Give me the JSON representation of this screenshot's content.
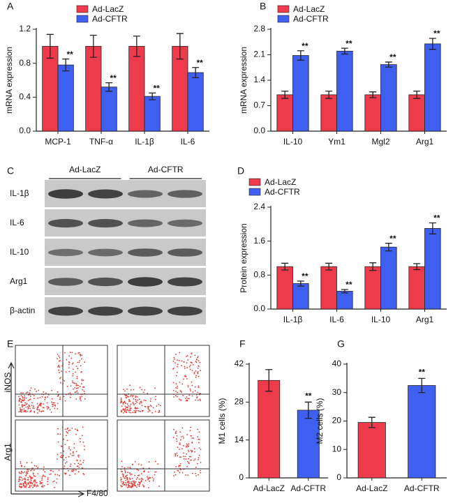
{
  "chart_data": [
    {
      "type": "bar",
      "panel_label": "A",
      "y_label": "mRNA expression",
      "categories": [
        "MCP-1",
        "TNF-α",
        "IL-1β",
        "IL-6"
      ],
      "series": [
        {
          "name": "Ad-LacZ",
          "color": "#ee3b4b",
          "values": [
            1.0,
            1.0,
            1.0,
            1.0
          ],
          "errors": [
            0.14,
            0.13,
            0.12,
            0.15
          ]
        },
        {
          "name": "Ad-CFTR",
          "color": "#3f5ff0",
          "values": [
            0.78,
            0.52,
            0.41,
            0.69
          ],
          "errors": [
            0.07,
            0.05,
            0.04,
            0.06
          ],
          "significance": [
            "**",
            "**",
            "**",
            "**"
          ]
        }
      ],
      "ylim": [
        0,
        1.2
      ],
      "yticks": [
        {
          "value": 0,
          "label": "0.0"
        },
        0.4,
        0.8,
        1.2
      ]
    },
    {
      "type": "bar",
      "panel_label": "B",
      "y_label": "mRNA expression",
      "categories": [
        "IL-10",
        "Ym1",
        "Mgl2",
        "Arg1"
      ],
      "series": [
        {
          "name": "Ad-LacZ",
          "color": "#ee3b4b",
          "values": [
            1.0,
            1.0,
            1.0,
            1.0
          ],
          "errors": [
            0.1,
            0.1,
            0.08,
            0.1
          ]
        },
        {
          "name": "Ad-CFTR",
          "color": "#3f5ff0",
          "values": [
            2.08,
            2.2,
            1.83,
            2.4
          ],
          "errors": [
            0.13,
            0.08,
            0.07,
            0.15
          ],
          "significance": [
            "**",
            "**",
            "**",
            "**"
          ]
        }
      ],
      "ylim": [
        0,
        2.8
      ],
      "yticks": [
        {
          "value": 0,
          "label": "0.0"
        },
        0.7,
        1.4,
        2.1,
        2.8
      ]
    },
    {
      "type": "bar",
      "panel_label": "D",
      "y_label": "Protein expression",
      "categories": [
        "IL-1β",
        "IL-6",
        "IL-10",
        "Arg1"
      ],
      "series": [
        {
          "name": "Ad-LacZ",
          "color": "#ee3b4b",
          "values": [
            1.0,
            1.0,
            1.0,
            1.0
          ],
          "errors": [
            0.08,
            0.08,
            0.09,
            0.07
          ]
        },
        {
          "name": "Ad-CFTR",
          "color": "#3f5ff0",
          "values": [
            0.6,
            0.42,
            1.46,
            1.9
          ],
          "errors": [
            0.06,
            0.04,
            0.09,
            0.13
          ],
          "significance": [
            "**",
            "**",
            "**",
            "**"
          ]
        }
      ],
      "ylim": [
        0,
        2.4
      ],
      "yticks": [
        {
          "value": 0,
          "label": "0.0"
        },
        0.8,
        1.6,
        2.4
      ]
    },
    {
      "type": "bar",
      "panel_label": "F",
      "y_label": "M1 cells (%)",
      "categories": [
        "Ad-LacZ",
        "Ad-CFTR"
      ],
      "colors": [
        "#ee3b4b",
        "#3f5ff0"
      ],
      "values": [
        36,
        25
      ],
      "errors": [
        4,
        3
      ],
      "significance": [
        null,
        "**"
      ],
      "ylim": [
        0,
        42
      ],
      "yticks": [
        0,
        14,
        28,
        42
      ]
    },
    {
      "type": "bar",
      "panel_label": "G",
      "y_label": "M2 cells (%)",
      "categories": [
        "Ad-LacZ",
        "Ad-CFTR"
      ],
      "colors": [
        "#ee3b4b",
        "#3f5ff0"
      ],
      "values": [
        19.5,
        32.5
      ],
      "errors": [
        1.8,
        2.5
      ],
      "significance": [
        null,
        "**"
      ],
      "ylim": [
        0,
        40
      ],
      "yticks": [
        0,
        10,
        20,
        30,
        40
      ]
    }
  ],
  "blot": {
    "panel_label": "C",
    "groups": [
      "Ad-LacZ",
      "Ad-CFTR"
    ],
    "rows": [
      "IL-1β",
      "IL-6",
      "IL-10",
      "Arg1",
      "β-actin"
    ]
  },
  "flow": {
    "panel_label": "E",
    "y_labels": [
      "iNOS",
      "Arg1"
    ],
    "x_label": "F4/80"
  }
}
